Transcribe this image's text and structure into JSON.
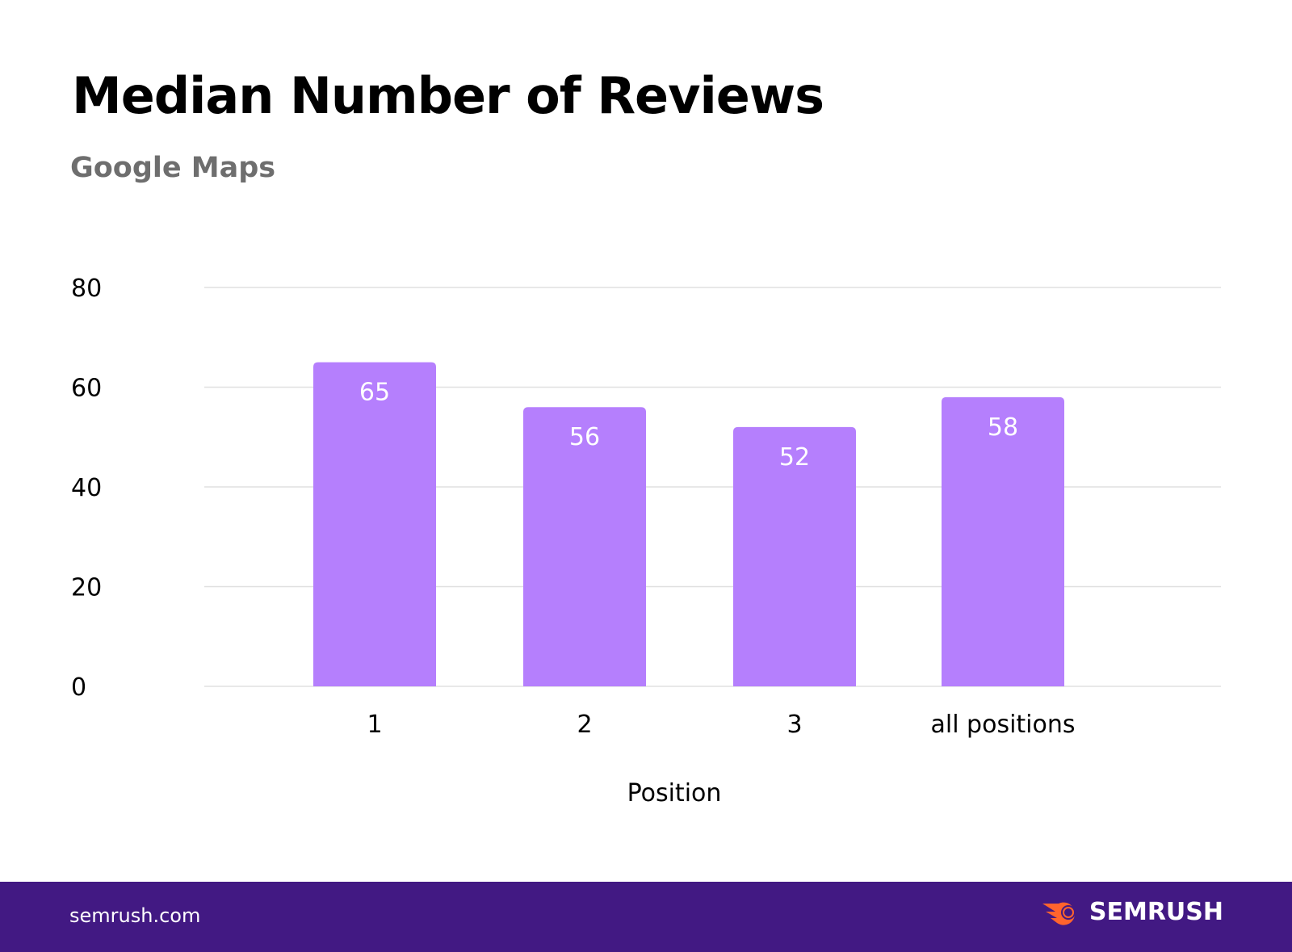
{
  "chart_data": {
    "type": "bar",
    "title": "Median Number of Reviews",
    "subtitle": "Google Maps",
    "categories": [
      "1",
      "2",
      "3",
      "all positions"
    ],
    "values": [
      65,
      56,
      52,
      58
    ],
    "xlabel": "Position",
    "ylabel": "",
    "ylim": [
      0,
      80
    ],
    "yticks": [
      0,
      20,
      40,
      60,
      80
    ],
    "grid": true,
    "bar_color": "#b57ffd"
  },
  "footer": {
    "site": "semrush.com",
    "brand": "SEMRUSH",
    "background": "#421983",
    "logo_color": "#ff642d"
  }
}
